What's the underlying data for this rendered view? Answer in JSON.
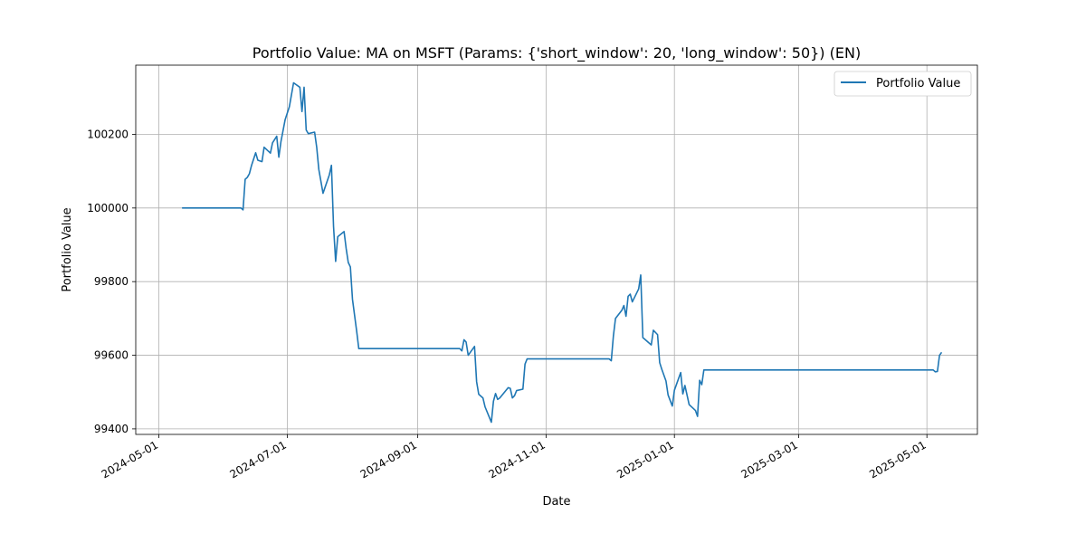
{
  "chart_data": {
    "type": "line",
    "title": "Portfolio Value: MA on MSFT (Params: {'short_window': 20, 'long_window': 50}) (EN)",
    "xlabel": "Date",
    "ylabel": "Portfolio Value",
    "xlim": [
      "2024-04-20",
      "2025-05-25"
    ],
    "ylim": [
      99385,
      100388
    ],
    "x_ticks": [
      "2024-05-01",
      "2024-07-01",
      "2024-09-01",
      "2024-11-01",
      "2025-01-01",
      "2025-03-01",
      "2025-05-01"
    ],
    "y_ticks": [
      99400,
      99600,
      99800,
      100000,
      100200
    ],
    "grid": true,
    "legend": {
      "position": "upper right",
      "entries": [
        "Portfolio Value"
      ]
    },
    "series": [
      {
        "name": "Portfolio Value",
        "color": "#1f77b4",
        "points": [
          [
            "2024-05-12",
            100000
          ],
          [
            "2024-06-09",
            100000
          ],
          [
            "2024-06-10",
            99995
          ],
          [
            "2024-06-11",
            100078
          ],
          [
            "2024-06-12",
            100083
          ],
          [
            "2024-06-13",
            100093
          ],
          [
            "2024-06-14",
            100115
          ],
          [
            "2024-06-16",
            100150
          ],
          [
            "2024-06-17",
            100130
          ],
          [
            "2024-06-19",
            100126
          ],
          [
            "2024-06-20",
            100165
          ],
          [
            "2024-06-23",
            100149
          ],
          [
            "2024-06-24",
            100177
          ],
          [
            "2024-06-26",
            100195
          ],
          [
            "2024-06-27",
            100138
          ],
          [
            "2024-06-28",
            100180
          ],
          [
            "2024-06-30",
            100240
          ],
          [
            "2024-07-02",
            100275
          ],
          [
            "2024-07-04",
            100340
          ],
          [
            "2024-07-07",
            100328
          ],
          [
            "2024-07-08",
            100262
          ],
          [
            "2024-07-09",
            100328
          ],
          [
            "2024-07-10",
            100212
          ],
          [
            "2024-07-11",
            100202
          ],
          [
            "2024-07-14",
            100206
          ],
          [
            "2024-07-15",
            100165
          ],
          [
            "2024-07-16",
            100105
          ],
          [
            "2024-07-18",
            100040
          ],
          [
            "2024-07-21",
            100090
          ],
          [
            "2024-07-22",
            100116
          ],
          [
            "2024-07-23",
            99950
          ],
          [
            "2024-07-24",
            99855
          ],
          [
            "2024-07-25",
            99922
          ],
          [
            "2024-07-28",
            99936
          ],
          [
            "2024-07-29",
            99890
          ],
          [
            "2024-07-30",
            99852
          ],
          [
            "2024-07-31",
            99840
          ],
          [
            "2024-08-01",
            99752
          ],
          [
            "2024-08-03",
            99665
          ],
          [
            "2024-08-04",
            99618
          ],
          [
            "2024-09-21",
            99618
          ],
          [
            "2024-09-22",
            99612
          ],
          [
            "2024-09-23",
            99642
          ],
          [
            "2024-09-24",
            99636
          ],
          [
            "2024-09-25",
            99600
          ],
          [
            "2024-09-28",
            99624
          ],
          [
            "2024-09-29",
            99528
          ],
          [
            "2024-09-30",
            99494
          ],
          [
            "2024-10-02",
            99484
          ],
          [
            "2024-10-03",
            99460
          ],
          [
            "2024-10-06",
            99418
          ],
          [
            "2024-10-07",
            99475
          ],
          [
            "2024-10-08",
            99496
          ],
          [
            "2024-10-09",
            99480
          ],
          [
            "2024-10-10",
            99484
          ],
          [
            "2024-10-14",
            99512
          ],
          [
            "2024-10-15",
            99510
          ],
          [
            "2024-10-16",
            99484
          ],
          [
            "2024-10-17",
            99490
          ],
          [
            "2024-10-18",
            99504
          ],
          [
            "2024-10-21",
            99508
          ],
          [
            "2024-10-22",
            99576
          ],
          [
            "2024-10-23",
            99590
          ],
          [
            "2024-12-01",
            99590
          ],
          [
            "2024-12-02",
            99585
          ],
          [
            "2024-12-03",
            99652
          ],
          [
            "2024-12-04",
            99700
          ],
          [
            "2024-12-07",
            99722
          ],
          [
            "2024-12-08",
            99735
          ],
          [
            "2024-12-09",
            99706
          ],
          [
            "2024-12-10",
            99760
          ],
          [
            "2024-12-11",
            99766
          ],
          [
            "2024-12-12",
            99745
          ],
          [
            "2024-12-15",
            99780
          ],
          [
            "2024-12-16",
            99818
          ],
          [
            "2024-12-17",
            99648
          ],
          [
            "2024-12-21",
            99628
          ],
          [
            "2024-12-22",
            99668
          ],
          [
            "2024-12-24",
            99656
          ],
          [
            "2024-12-25",
            99580
          ],
          [
            "2024-12-26",
            99562
          ],
          [
            "2024-12-28",
            99530
          ],
          [
            "2024-12-29",
            99492
          ],
          [
            "2024-12-31",
            99462
          ],
          [
            "2025-01-01",
            99505
          ],
          [
            "2025-01-04",
            99553
          ],
          [
            "2025-01-05",
            99495
          ],
          [
            "2025-01-06",
            99518
          ],
          [
            "2025-01-07",
            99492
          ],
          [
            "2025-01-08",
            99466
          ],
          [
            "2025-01-11",
            99450
          ],
          [
            "2025-01-12",
            99434
          ],
          [
            "2025-01-13",
            99532
          ],
          [
            "2025-01-14",
            99520
          ],
          [
            "2025-01-15",
            99560
          ],
          [
            "2025-05-04",
            99560
          ],
          [
            "2025-05-05",
            99555
          ],
          [
            "2025-05-06",
            99556
          ],
          [
            "2025-05-07",
            99600
          ],
          [
            "2025-05-08",
            99608
          ]
        ]
      }
    ]
  }
}
